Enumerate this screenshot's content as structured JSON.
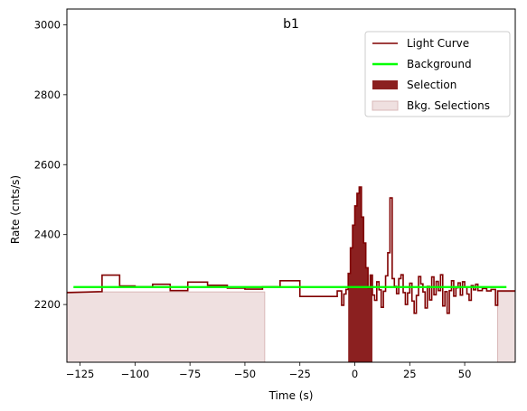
{
  "chart_data": {
    "type": "line",
    "title": "b1",
    "xlabel": "Time (s)",
    "ylabel": "Rate (cnts/s)",
    "xlim": [
      -131,
      73
    ],
    "ylim": [
      2035,
      3045
    ],
    "xticks": [
      -125,
      -100,
      -75,
      -50,
      -25,
      0,
      25,
      50
    ],
    "xtick_labels": [
      "−125",
      "−100",
      "−75",
      "−50",
      "−25",
      "0",
      "25",
      "50"
    ],
    "yticks": [
      2200,
      2400,
      2600,
      2800,
      3000
    ],
    "ytick_labels": [
      "2200",
      "2400",
      "2600",
      "2800",
      "3000"
    ],
    "grid": false,
    "legend_position": "top-right",
    "legend": [
      "Light Curve",
      "Background",
      "Selection",
      "Bkg. Selections"
    ],
    "colors": {
      "light_curve": "#800000",
      "background": "#00ff00",
      "selection": "#8b2020",
      "bkg_selection": "#efe0e0"
    },
    "light_curve_steps": [
      [
        -131,
        2234
      ],
      [
        -115,
        2237
      ],
      [
        -115,
        2237
      ],
      [
        -115,
        2284
      ],
      [
        -107,
        2284
      ],
      [
        -107,
        2253
      ],
      [
        -100,
        2253
      ],
      [
        -100,
        2251
      ],
      [
        -92,
        2251
      ],
      [
        -92,
        2258
      ],
      [
        -84,
        2258
      ],
      [
        -84,
        2240
      ],
      [
        -76,
        2240
      ],
      [
        -76,
        2264
      ],
      [
        -67,
        2264
      ],
      [
        -67,
        2255
      ],
      [
        -58,
        2255
      ],
      [
        -58,
        2247
      ],
      [
        -50,
        2247
      ],
      [
        -50,
        2244
      ],
      [
        -42,
        2244
      ],
      [
        -42,
        2251
      ],
      [
        -34,
        2251
      ],
      [
        -34,
        2268
      ],
      [
        -25,
        2268
      ],
      [
        -25,
        2223
      ],
      [
        -8,
        2223
      ],
      [
        -8,
        2239
      ],
      [
        -6,
        2239
      ],
      [
        -6,
        2198
      ],
      [
        -5,
        2198
      ],
      [
        -5,
        2230
      ],
      [
        -4,
        2230
      ],
      [
        -4,
        2243
      ],
      [
        -3,
        2243
      ],
      [
        -3,
        2289
      ],
      [
        -2,
        2289
      ],
      [
        -2,
        2362
      ],
      [
        -1,
        2362
      ],
      [
        -1,
        2427
      ],
      [
        0,
        2427
      ],
      [
        0,
        2482
      ],
      [
        1,
        2482
      ],
      [
        1,
        2518
      ],
      [
        2,
        2518
      ],
      [
        2,
        2536
      ],
      [
        3,
        2536
      ],
      [
        3,
        2450
      ],
      [
        4,
        2450
      ],
      [
        4,
        2376
      ],
      [
        5,
        2376
      ],
      [
        5,
        2305
      ],
      [
        6,
        2305
      ],
      [
        6,
        2248
      ],
      [
        7,
        2248
      ],
      [
        7,
        2284
      ],
      [
        8,
        2284
      ],
      [
        8,
        2227
      ],
      [
        9,
        2227
      ],
      [
        9,
        2212
      ],
      [
        10,
        2212
      ],
      [
        10,
        2265
      ],
      [
        11,
        2265
      ],
      [
        11,
        2242
      ],
      [
        12,
        2242
      ],
      [
        12,
        2192
      ],
      [
        13,
        2192
      ],
      [
        13,
        2238
      ],
      [
        14,
        2238
      ],
      [
        14,
        2282
      ],
      [
        15,
        2282
      ],
      [
        15,
        2348
      ],
      [
        16,
        2348
      ],
      [
        16,
        2505
      ],
      [
        17,
        2505
      ],
      [
        17,
        2274
      ],
      [
        18,
        2274
      ],
      [
        18,
        2252
      ],
      [
        19,
        2252
      ],
      [
        19,
        2231
      ],
      [
        20,
        2231
      ],
      [
        20,
        2274
      ],
      [
        21,
        2274
      ],
      [
        21,
        2285
      ],
      [
        22,
        2285
      ],
      [
        22,
        2234
      ],
      [
        23,
        2234
      ],
      [
        23,
        2200
      ],
      [
        24,
        2200
      ],
      [
        24,
        2233
      ],
      [
        25,
        2233
      ],
      [
        25,
        2261
      ],
      [
        26,
        2261
      ],
      [
        26,
        2210
      ],
      [
        27,
        2210
      ],
      [
        27,
        2175
      ],
      [
        28,
        2175
      ],
      [
        28,
        2226
      ],
      [
        29,
        2226
      ],
      [
        29,
        2280
      ],
      [
        30,
        2280
      ],
      [
        30,
        2259
      ],
      [
        31,
        2259
      ],
      [
        31,
        2236
      ],
      [
        32,
        2236
      ],
      [
        32,
        2190
      ],
      [
        33,
        2190
      ],
      [
        33,
        2252
      ],
      [
        34,
        2252
      ],
      [
        34,
        2213
      ],
      [
        35,
        2213
      ],
      [
        35,
        2279
      ],
      [
        36,
        2279
      ],
      [
        36,
        2228
      ],
      [
        37,
        2228
      ],
      [
        37,
        2266
      ],
      [
        38,
        2266
      ],
      [
        38,
        2240
      ],
      [
        39,
        2240
      ],
      [
        39,
        2285
      ],
      [
        40,
        2285
      ],
      [
        40,
        2196
      ],
      [
        41,
        2196
      ],
      [
        41,
        2237
      ],
      [
        42,
        2237
      ],
      [
        42,
        2175
      ],
      [
        43,
        2175
      ],
      [
        43,
        2240
      ],
      [
        44,
        2240
      ],
      [
        44,
        2268
      ],
      [
        45,
        2268
      ],
      [
        45,
        2224
      ],
      [
        46,
        2224
      ],
      [
        46,
        2248
      ],
      [
        47,
        2248
      ],
      [
        47,
        2262
      ],
      [
        48,
        2262
      ],
      [
        48,
        2227
      ],
      [
        49,
        2227
      ],
      [
        49,
        2265
      ],
      [
        50,
        2265
      ],
      [
        50,
        2250
      ],
      [
        51,
        2250
      ],
      [
        51,
        2230
      ],
      [
        52,
        2230
      ],
      [
        52,
        2212
      ],
      [
        53,
        2212
      ],
      [
        53,
        2254
      ],
      [
        54,
        2254
      ],
      [
        54,
        2242
      ],
      [
        55,
        2242
      ],
      [
        55,
        2258
      ],
      [
        56,
        2258
      ],
      [
        56,
        2240
      ],
      [
        58,
        2240
      ],
      [
        58,
        2246
      ],
      [
        60,
        2246
      ],
      [
        60,
        2239
      ],
      [
        62,
        2239
      ],
      [
        62,
        2243
      ],
      [
        64,
        2243
      ],
      [
        64,
        2198
      ],
      [
        65,
        2198
      ],
      [
        65,
        2239
      ],
      [
        73,
        2239
      ]
    ],
    "background": {
      "x": [
        -128,
        69
      ],
      "y": [
        2250,
        2250
      ]
    },
    "selection_range": [
      -3,
      8
    ],
    "bkg_selection_ranges": [
      [
        -131,
        -41
      ],
      [
        65,
        73
      ]
    ]
  }
}
